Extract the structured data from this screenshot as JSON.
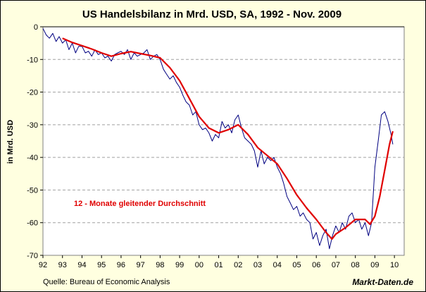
{
  "chart_data": {
    "type": "line",
    "title": "US Handelsbilanz in Mrd. USD, SA, 1992 - Nov. 2009",
    "ylabel": "in Mrd. USD",
    "xlabel": "",
    "xlim": [
      1992.0,
      2010.5
    ],
    "ylim": [
      -70,
      0
    ],
    "yticks": [
      0,
      -10,
      -20,
      -30,
      -40,
      -50,
      -60,
      -70
    ],
    "xticks": [
      {
        "x": 1992,
        "label": "92"
      },
      {
        "x": 1993,
        "label": "93"
      },
      {
        "x": 1994,
        "label": "94"
      },
      {
        "x": 1995,
        "label": "95"
      },
      {
        "x": 1996,
        "label": "96"
      },
      {
        "x": 1997,
        "label": "97"
      },
      {
        "x": 1998,
        "label": "98"
      },
      {
        "x": 1999,
        "label": "99"
      },
      {
        "x": 2000,
        "label": "00"
      },
      {
        "x": 2001,
        "label": "01"
      },
      {
        "x": 2002,
        "label": "02"
      },
      {
        "x": 2003,
        "label": "03"
      },
      {
        "x": 2004,
        "label": "04"
      },
      {
        "x": 2005,
        "label": "05"
      },
      {
        "x": 2006,
        "label": "06"
      },
      {
        "x": 2007,
        "label": "07"
      },
      {
        "x": 2008,
        "label": "08"
      },
      {
        "x": 2009,
        "label": "09"
      },
      {
        "x": 2010,
        "label": "10"
      }
    ],
    "grid": "horizontal-dashed",
    "annotation": "12 - Monate gleitender Durchschnitt",
    "series": [
      {
        "key": "monthly",
        "color": "#000080",
        "points": [
          [
            1992.0,
            -0.5
          ],
          [
            1992.17,
            -2.5
          ],
          [
            1992.33,
            -3.5
          ],
          [
            1992.5,
            -2
          ],
          [
            1992.67,
            -4.5
          ],
          [
            1992.83,
            -3
          ],
          [
            1993.0,
            -5
          ],
          [
            1993.17,
            -4
          ],
          [
            1993.33,
            -7
          ],
          [
            1993.5,
            -5
          ],
          [
            1993.67,
            -8
          ],
          [
            1993.83,
            -6
          ],
          [
            1994.0,
            -6
          ],
          [
            1994.17,
            -8
          ],
          [
            1994.33,
            -7.5
          ],
          [
            1994.5,
            -9
          ],
          [
            1994.67,
            -7
          ],
          [
            1994.83,
            -8.5
          ],
          [
            1995.0,
            -8
          ],
          [
            1995.17,
            -9.5
          ],
          [
            1995.33,
            -9
          ],
          [
            1995.5,
            -10.5
          ],
          [
            1995.67,
            -8.5
          ],
          [
            1995.83,
            -8
          ],
          [
            1996.0,
            -7.5
          ],
          [
            1996.17,
            -8.5
          ],
          [
            1996.33,
            -7
          ],
          [
            1996.5,
            -10
          ],
          [
            1996.67,
            -8
          ],
          [
            1996.83,
            -9
          ],
          [
            1997.0,
            -8.5
          ],
          [
            1997.17,
            -8
          ],
          [
            1997.33,
            -7
          ],
          [
            1997.5,
            -10
          ],
          [
            1997.67,
            -9
          ],
          [
            1997.83,
            -8.5
          ],
          [
            1998.0,
            -10
          ],
          [
            1998.17,
            -13
          ],
          [
            1998.33,
            -14.5
          ],
          [
            1998.5,
            -16
          ],
          [
            1998.67,
            -15
          ],
          [
            1998.83,
            -17
          ],
          [
            1999.0,
            -18.5
          ],
          [
            1999.17,
            -21
          ],
          [
            1999.33,
            -23
          ],
          [
            1999.5,
            -24
          ],
          [
            1999.67,
            -27
          ],
          [
            1999.83,
            -26
          ],
          [
            2000.0,
            -30
          ],
          [
            2000.17,
            -31.5
          ],
          [
            2000.33,
            -31
          ],
          [
            2000.5,
            -32.5
          ],
          [
            2000.67,
            -35
          ],
          [
            2000.83,
            -33
          ],
          [
            2001.0,
            -34
          ],
          [
            2001.17,
            -29
          ],
          [
            2001.33,
            -31
          ],
          [
            2001.5,
            -30
          ],
          [
            2001.67,
            -32.5
          ],
          [
            2001.83,
            -28.5
          ],
          [
            2002.0,
            -27
          ],
          [
            2002.17,
            -31
          ],
          [
            2002.33,
            -34
          ],
          [
            2002.5,
            -35
          ],
          [
            2002.67,
            -36
          ],
          [
            2002.83,
            -38
          ],
          [
            2003.0,
            -43
          ],
          [
            2003.17,
            -38
          ],
          [
            2003.33,
            -42
          ],
          [
            2003.5,
            -40
          ],
          [
            2003.67,
            -41
          ],
          [
            2003.83,
            -40
          ],
          [
            2004.0,
            -43
          ],
          [
            2004.17,
            -45
          ],
          [
            2004.33,
            -48
          ],
          [
            2004.5,
            -52
          ],
          [
            2004.67,
            -54
          ],
          [
            2004.83,
            -56
          ],
          [
            2005.0,
            -55
          ],
          [
            2005.17,
            -58
          ],
          [
            2005.33,
            -57
          ],
          [
            2005.5,
            -59
          ],
          [
            2005.67,
            -60
          ],
          [
            2005.83,
            -65
          ],
          [
            2006.0,
            -63
          ],
          [
            2006.17,
            -67
          ],
          [
            2006.33,
            -64
          ],
          [
            2006.5,
            -62
          ],
          [
            2006.67,
            -68
          ],
          [
            2006.83,
            -64
          ],
          [
            2007.0,
            -61
          ],
          [
            2007.17,
            -63
          ],
          [
            2007.33,
            -60
          ],
          [
            2007.5,
            -62
          ],
          [
            2007.67,
            -58
          ],
          [
            2007.83,
            -57
          ],
          [
            2008.0,
            -60
          ],
          [
            2008.17,
            -59
          ],
          [
            2008.33,
            -62
          ],
          [
            2008.5,
            -60
          ],
          [
            2008.67,
            -64
          ],
          [
            2008.83,
            -60
          ],
          [
            2009.0,
            -43
          ],
          [
            2009.17,
            -35
          ],
          [
            2009.33,
            -27
          ],
          [
            2009.5,
            -26
          ],
          [
            2009.67,
            -29
          ],
          [
            2009.83,
            -33
          ],
          [
            2009.92,
            -36
          ]
        ]
      },
      {
        "key": "moving_avg",
        "color": "#E00000",
        "points": [
          [
            1993.0,
            -3.5
          ],
          [
            1993.5,
            -4.8
          ],
          [
            1994.0,
            -5.8
          ],
          [
            1994.5,
            -6.8
          ],
          [
            1995.0,
            -8
          ],
          [
            1995.5,
            -9
          ],
          [
            1996.0,
            -8.2
          ],
          [
            1996.5,
            -7.6
          ],
          [
            1997.0,
            -8.2
          ],
          [
            1997.5,
            -8.8
          ],
          [
            1998.0,
            -9.5
          ],
          [
            1998.5,
            -12.5
          ],
          [
            1999.0,
            -16.5
          ],
          [
            1999.5,
            -22
          ],
          [
            2000.0,
            -27.5
          ],
          [
            2000.5,
            -31
          ],
          [
            2001.0,
            -32.5
          ],
          [
            2001.5,
            -31.5
          ],
          [
            2002.0,
            -30
          ],
          [
            2002.5,
            -33
          ],
          [
            2003.0,
            -37
          ],
          [
            2003.5,
            -39.5
          ],
          [
            2004.0,
            -42
          ],
          [
            2004.5,
            -46.5
          ],
          [
            2005.0,
            -51.5
          ],
          [
            2005.5,
            -55.5
          ],
          [
            2006.0,
            -59
          ],
          [
            2006.5,
            -63
          ],
          [
            2006.8,
            -65
          ],
          [
            2007.0,
            -63.5
          ],
          [
            2007.5,
            -61.5
          ],
          [
            2008.0,
            -59
          ],
          [
            2008.5,
            -59
          ],
          [
            2008.75,
            -60.5
          ],
          [
            2009.0,
            -58
          ],
          [
            2009.25,
            -52
          ],
          [
            2009.5,
            -44
          ],
          [
            2009.75,
            -36
          ],
          [
            2009.92,
            -32
          ]
        ]
      }
    ]
  },
  "source": "Quelle: Bureau of Economic Analysis",
  "brand": "Markt-Daten.de",
  "colors": {
    "background": "#FFFFE0",
    "plot_background": "#FFFFFF",
    "grid": "#A0A0A0",
    "monthly": "#000080",
    "moving_avg": "#E00000"
  }
}
